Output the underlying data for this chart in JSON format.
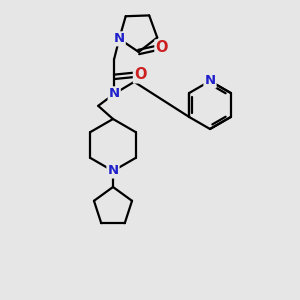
{
  "bg_color": "#e6e6e6",
  "bond_color": "#000000",
  "bond_width": 1.6,
  "N_color": "#2020cc",
  "O_color": "#cc2020",
  "font_size_atom": 9.5,
  "fig_w": 3.0,
  "fig_h": 3.0,
  "dpi": 100,
  "xlim": [
    0,
    300
  ],
  "ylim": [
    0,
    300
  ]
}
